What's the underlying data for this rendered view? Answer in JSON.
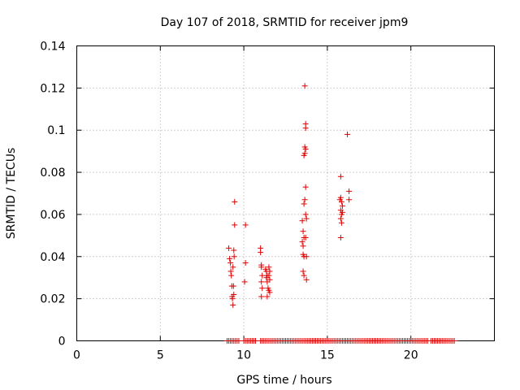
{
  "chart_data": {
    "type": "scatter",
    "title": "Day 107 of 2018, SRMTID for receiver jpm9",
    "xlabel": "GPS time / hours",
    "ylabel": "SRMTID / TECUs",
    "xlim": [
      0,
      25
    ],
    "ylim": [
      0,
      0.14
    ],
    "xticks": [
      0,
      5,
      10,
      15,
      20
    ],
    "xtick_labels": [
      "0",
      "5",
      "10",
      "15",
      "20"
    ],
    "yticks": [
      0,
      0.02,
      0.04,
      0.06,
      0.08,
      0.1,
      0.12,
      0.14
    ],
    "ytick_labels": [
      "0",
      "0.02",
      "0.04",
      "0.06",
      "0.08",
      "0.1",
      "0.12",
      "0.14"
    ],
    "grid": true,
    "marker": "+",
    "color": "#e00000",
    "series": [
      {
        "name": "SRMTID",
        "points": [
          [
            9.1,
            0.044
          ],
          [
            9.15,
            0.039
          ],
          [
            9.2,
            0.037
          ],
          [
            9.22,
            0.033
          ],
          [
            9.25,
            0.031
          ],
          [
            9.28,
            0.026
          ],
          [
            9.3,
            0.021
          ],
          [
            9.32,
            0.02
          ],
          [
            9.35,
            0.017
          ],
          [
            9.38,
            0.026
          ],
          [
            9.4,
            0.022
          ],
          [
            9.35,
            0.035
          ],
          [
            9.4,
            0.043
          ],
          [
            9.42,
            0.04
          ],
          [
            9.45,
            0.066
          ],
          [
            9.45,
            0.055
          ],
          [
            10.1,
            0.055
          ],
          [
            10.1,
            0.037
          ],
          [
            10.05,
            0.028
          ],
          [
            11.0,
            0.044
          ],
          [
            11.0,
            0.042
          ],
          [
            11.05,
            0.036
          ],
          [
            11.05,
            0.035
          ],
          [
            11.1,
            0.031
          ],
          [
            11.05,
            0.028
          ],
          [
            11.1,
            0.025
          ],
          [
            11.05,
            0.021
          ],
          [
            11.3,
            0.034
          ],
          [
            11.35,
            0.033
          ],
          [
            11.4,
            0.031
          ],
          [
            11.35,
            0.03
          ],
          [
            11.4,
            0.028
          ],
          [
            11.45,
            0.025
          ],
          [
            11.4,
            0.021
          ],
          [
            11.5,
            0.035
          ],
          [
            11.55,
            0.033
          ],
          [
            11.5,
            0.031
          ],
          [
            11.55,
            0.029
          ],
          [
            11.5,
            0.024
          ],
          [
            11.55,
            0.023
          ],
          [
            13.5,
            0.057
          ],
          [
            13.55,
            0.052
          ],
          [
            13.5,
            0.047
          ],
          [
            13.55,
            0.045
          ],
          [
            13.6,
            0.049
          ],
          [
            13.55,
            0.041
          ],
          [
            13.6,
            0.04
          ],
          [
            13.55,
            0.033
          ],
          [
            13.6,
            0.031
          ],
          [
            13.65,
            0.121
          ],
          [
            13.7,
            0.103
          ],
          [
            13.7,
            0.101
          ],
          [
            13.65,
            0.092
          ],
          [
            13.7,
            0.091
          ],
          [
            13.65,
            0.089
          ],
          [
            13.6,
            0.088
          ],
          [
            13.7,
            0.073
          ],
          [
            13.65,
            0.067
          ],
          [
            13.6,
            0.065
          ],
          [
            13.7,
            0.06
          ],
          [
            13.75,
            0.058
          ],
          [
            13.7,
            0.049
          ],
          [
            13.75,
            0.04
          ],
          [
            13.75,
            0.029
          ],
          [
            15.8,
            0.078
          ],
          [
            15.75,
            0.067
          ],
          [
            15.8,
            0.068
          ],
          [
            15.85,
            0.066
          ],
          [
            15.8,
            0.062
          ],
          [
            15.85,
            0.06
          ],
          [
            15.8,
            0.058
          ],
          [
            15.85,
            0.056
          ],
          [
            15.9,
            0.064
          ],
          [
            15.9,
            0.061
          ],
          [
            15.8,
            0.049
          ],
          [
            16.2,
            0.098
          ],
          [
            16.3,
            0.071
          ],
          [
            16.3,
            0.067
          ]
        ]
      }
    ],
    "zero_band": [
      [
        9.0,
        9.7
      ],
      [
        10.0,
        10.7
      ],
      [
        11.0,
        12.0
      ],
      [
        12.1,
        13.7
      ],
      [
        13.8,
        18.0
      ],
      [
        18.1,
        21.0
      ],
      [
        21.2,
        22.6
      ]
    ]
  }
}
